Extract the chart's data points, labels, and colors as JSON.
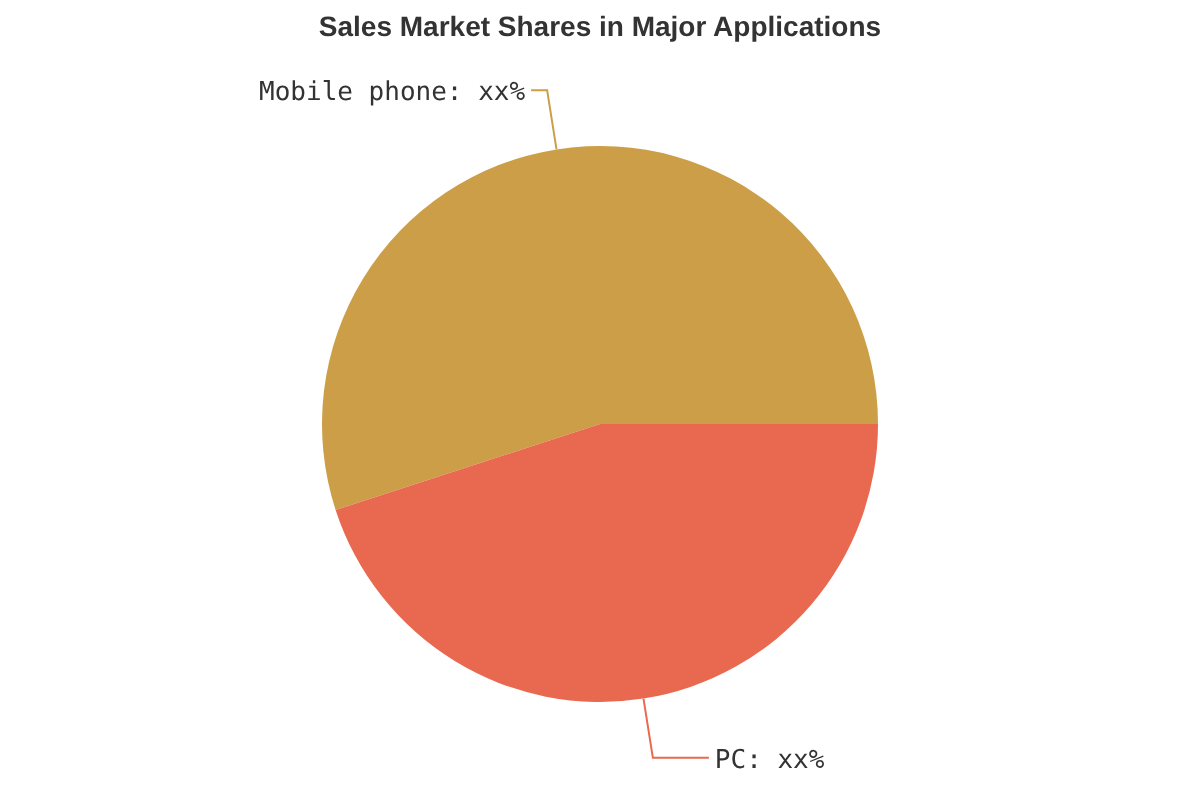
{
  "chart_data": {
    "type": "pie",
    "title": "Sales Market Shares in Major Applications",
    "categories": [
      "Mobile phone",
      "PC"
    ],
    "values": [
      55,
      45
    ],
    "value_labels": [
      "xx%",
      "xx%"
    ],
    "colors": [
      "#cc9e48",
      "#e8694f"
    ]
  }
}
